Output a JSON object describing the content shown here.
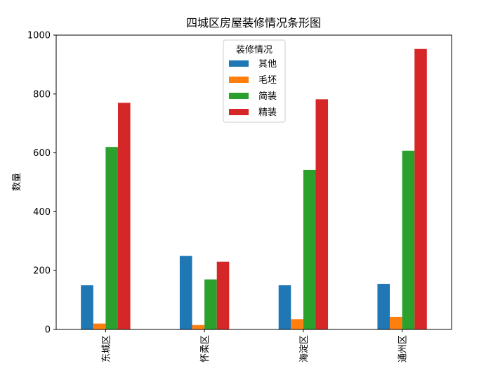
{
  "chart_data": {
    "type": "bar",
    "title": "四城区房屋装修情况条形图",
    "xlabel": "",
    "ylabel": "数量",
    "ylim": [
      0,
      1000
    ],
    "yticks": [
      0,
      200,
      400,
      600,
      800,
      1000
    ],
    "grid": false,
    "legend_position": "upper center",
    "legend_title": "装修情况",
    "categories": [
      "东城区",
      "怀柔区",
      "海淀区",
      "通州区"
    ],
    "series": [
      {
        "name": "其他",
        "color": "#1f77b4",
        "values": [
          150,
          250,
          150,
          155
        ]
      },
      {
        "name": "毛坯",
        "color": "#ff7f0e",
        "values": [
          20,
          15,
          35,
          43
        ]
      },
      {
        "name": "简装",
        "color": "#2ca02c",
        "values": [
          620,
          170,
          542,
          607
        ]
      },
      {
        "name": "精装",
        "color": "#d62728",
        "values": [
          770,
          230,
          782,
          953
        ]
      }
    ]
  }
}
